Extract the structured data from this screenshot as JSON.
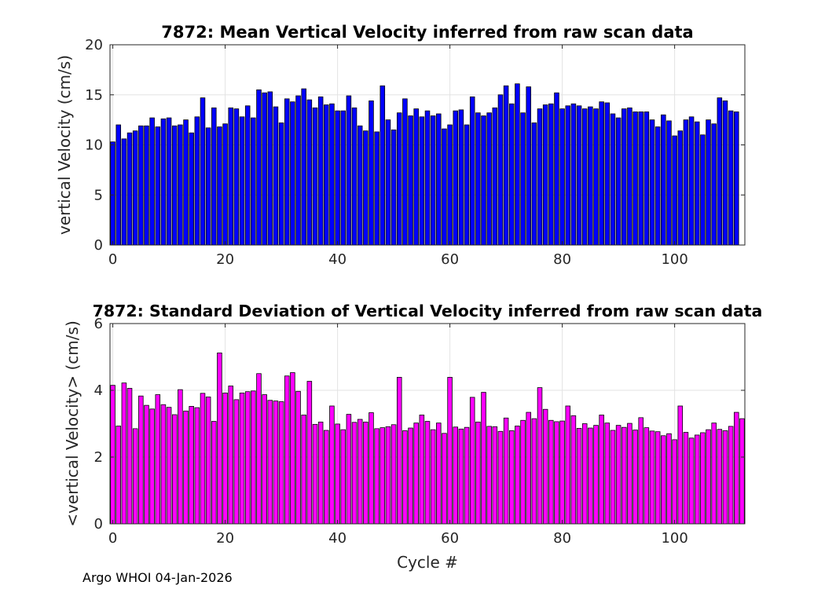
{
  "chart_data": [
    {
      "type": "bar",
      "title": "7872: Mean Vertical Velocity inferred from raw scan data",
      "xlabel": "",
      "ylabel": "vertical Velocity (cm/s)",
      "xlim": [
        -0.5,
        112.5
      ],
      "ylim": [
        0,
        20
      ],
      "xticks": [
        0,
        20,
        40,
        60,
        80,
        100
      ],
      "yticks": [
        0,
        5,
        10,
        15,
        20
      ],
      "grid": true,
      "color": "#0000ff",
      "x_start": 0,
      "values": [
        10.3,
        12.0,
        10.6,
        11.2,
        11.4,
        11.9,
        11.9,
        12.7,
        11.8,
        12.6,
        12.7,
        11.9,
        12.0,
        12.5,
        11.2,
        12.8,
        14.7,
        11.7,
        13.7,
        11.8,
        12.1,
        13.7,
        13.6,
        12.8,
        13.9,
        12.7,
        15.5,
        15.2,
        15.3,
        13.8,
        12.2,
        14.6,
        14.3,
        14.9,
        15.6,
        14.5,
        13.7,
        14.8,
        14.0,
        14.1,
        13.4,
        13.4,
        14.9,
        13.7,
        11.9,
        11.4,
        14.4,
        11.3,
        15.9,
        12.5,
        11.5,
        13.2,
        14.6,
        12.9,
        13.6,
        12.8,
        13.4,
        12.9,
        13.1,
        11.6,
        12.0,
        13.4,
        13.5,
        12.0,
        14.8,
        13.2,
        12.9,
        13.2,
        13.7,
        15.0,
        15.9,
        14.1,
        16.1,
        13.2,
        15.8,
        12.2,
        13.6,
        14.0,
        14.1,
        15.2,
        13.6,
        13.9,
        14.1,
        13.9,
        13.6,
        13.8,
        13.6,
        14.3,
        14.2,
        13.1,
        12.7,
        13.6,
        13.7,
        13.3,
        13.3,
        13.3,
        12.5,
        11.8,
        13.0,
        12.4,
        10.9,
        11.4,
        12.5,
        12.8,
        12.3,
        11.0,
        12.5,
        12.1,
        14.7,
        14.4,
        13.4,
        13.3
      ]
    },
    {
      "type": "bar",
      "title": "7872: Standard Deviation of Vertical Velocity inferred from raw scan data",
      "xlabel": "Cycle #",
      "ylabel": "<vertical Velocity> (cm/s)",
      "xlim": [
        -0.5,
        112.5
      ],
      "ylim": [
        0,
        6
      ],
      "xticks": [
        0,
        20,
        40,
        60,
        80,
        100
      ],
      "yticks": [
        0,
        2,
        4,
        6
      ],
      "grid": true,
      "color": "#ff00ff",
      "x_start": 0,
      "values": [
        4.15,
        2.93,
        4.22,
        4.06,
        2.85,
        3.83,
        3.55,
        3.44,
        3.87,
        3.57,
        3.49,
        3.27,
        4.02,
        3.38,
        3.52,
        3.48,
        3.91,
        3.8,
        3.07,
        5.12,
        3.92,
        4.13,
        3.72,
        3.92,
        3.96,
        3.98,
        4.5,
        3.87,
        3.7,
        3.68,
        3.66,
        4.43,
        4.53,
        3.97,
        3.26,
        4.27,
        2.98,
        3.05,
        2.8,
        3.53,
        2.99,
        2.82,
        3.28,
        3.04,
        3.13,
        3.05,
        3.33,
        2.85,
        2.88,
        2.91,
        2.97,
        4.39,
        2.79,
        2.87,
        3.02,
        3.26,
        3.07,
        2.82,
        3.02,
        2.71,
        4.39,
        2.9,
        2.84,
        2.89,
        3.79,
        3.05,
        3.94,
        2.92,
        2.91,
        2.77,
        3.17,
        2.79,
        2.93,
        3.1,
        3.34,
        3.15,
        4.08,
        3.43,
        3.1,
        3.06,
        3.08,
        3.53,
        3.24,
        2.86,
        3.0,
        2.87,
        2.95,
        3.26,
        3.02,
        2.8,
        2.95,
        2.89,
        3.01,
        2.81,
        3.18,
        2.88,
        2.78,
        2.76,
        2.64,
        2.7,
        2.52,
        3.53,
        2.74,
        2.57,
        2.66,
        2.73,
        2.82,
        3.02,
        2.83,
        2.79,
        2.92,
        3.34,
        3.15
      ]
    }
  ],
  "footer": "Argo WHOI 04-Jan-2026"
}
